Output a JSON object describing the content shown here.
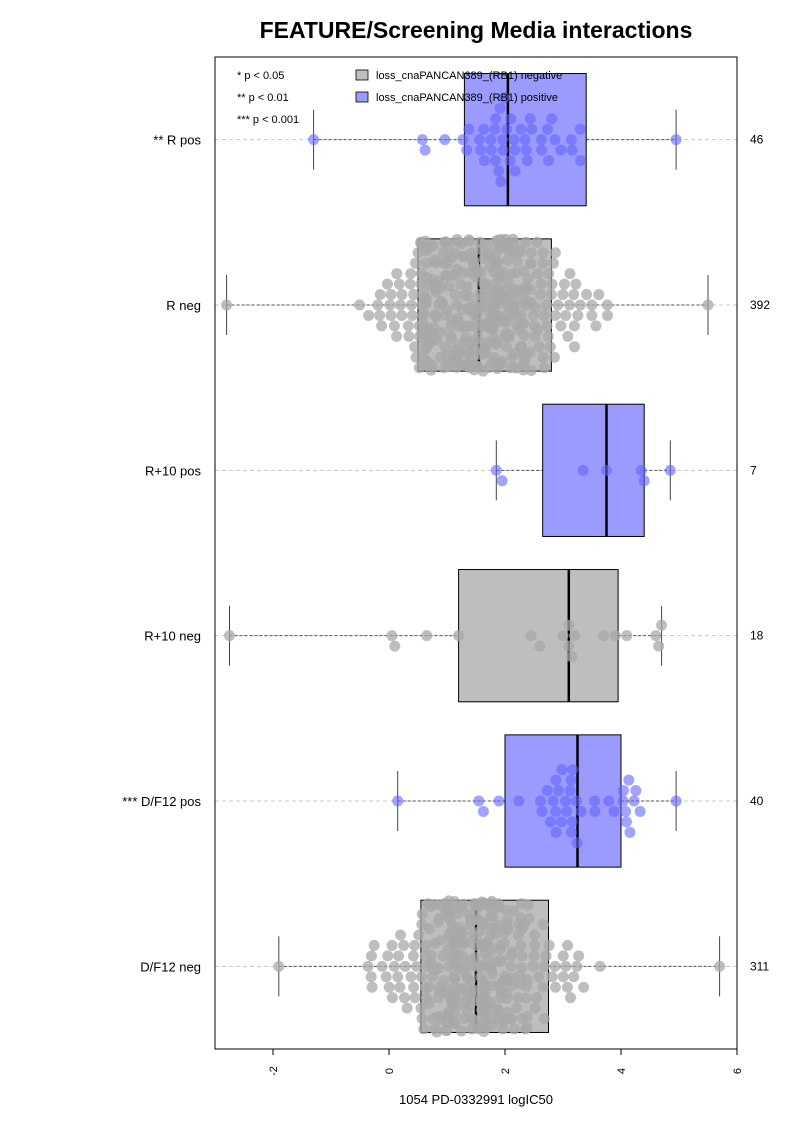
{
  "chart_data": {
    "type": "boxplot",
    "title": "FEATURE/Screening Media interactions",
    "xlabel": "1054 PD-0332991 logIC50",
    "xlim": [
      -3.0,
      6.0
    ],
    "xticks": [
      -2,
      0,
      2,
      4,
      6
    ],
    "xtick_labels": [
      "-2",
      "0",
      "2",
      "4",
      "6"
    ],
    "orientation": "horizontal",
    "grid": "dashed horizontal at each group",
    "significance_legend": [
      "* p < 0.05",
      "** p < 0.01",
      "*** p < 0.001"
    ],
    "legend": {
      "placement": "top",
      "items": [
        {
          "label": "loss_cnaPANCAN389_(RB1) negative",
          "color": "#bebebe"
        },
        {
          "label": "loss_cnaPANCAN389_(RB1) positive",
          "color": "#9b9bff"
        }
      ]
    },
    "colors": {
      "negative_box": "#bebebe",
      "positive_box": "#9b9bff",
      "negative_point": "#a8a8a8",
      "positive_point": "#6464ff"
    },
    "groups": [
      {
        "label": "** R pos",
        "count": "46",
        "status": "positive",
        "whisker_low": -1.3,
        "q1": 1.3,
        "median": 2.05,
        "q3": 3.4,
        "whisker_high": 4.95
      },
      {
        "label": "R neg",
        "count": "392",
        "status": "negative",
        "whisker_low": -2.8,
        "q1": 0.5,
        "median": 1.55,
        "q3": 2.8,
        "whisker_high": 5.5
      },
      {
        "label": "R+10 pos",
        "count": "7",
        "status": "positive",
        "whisker_low": 1.85,
        "q1": 2.65,
        "median": 3.75,
        "q3": 4.4,
        "whisker_high": 4.85,
        "points": [
          1.85,
          1.95,
          3.35,
          3.75,
          4.35,
          4.4,
          4.85
        ]
      },
      {
        "label": "R+10 neg",
        "count": "18",
        "status": "negative",
        "whisker_low": -2.75,
        "q1": 1.2,
        "median": 3.1,
        "q3": 3.95,
        "whisker_high": 4.7,
        "points": [
          -2.75,
          0.05,
          0.1,
          0.65,
          1.2,
          2.45,
          2.6,
          3.0,
          3.1,
          3.1,
          3.15,
          3.2,
          3.7,
          3.9,
          4.1,
          4.6,
          4.7,
          4.65
        ]
      },
      {
        "label": "*** D/F12 pos",
        "count": "40",
        "status": "positive",
        "whisker_low": 0.15,
        "q1": 2.0,
        "median": 3.25,
        "q3": 4.0,
        "whisker_high": 4.95
      },
      {
        "label": "D/F12 neg",
        "count": "311",
        "status": "negative",
        "whisker_low": -1.9,
        "q1": 0.55,
        "median": 1.5,
        "q3": 2.75,
        "whisker_high": 5.7
      }
    ]
  }
}
